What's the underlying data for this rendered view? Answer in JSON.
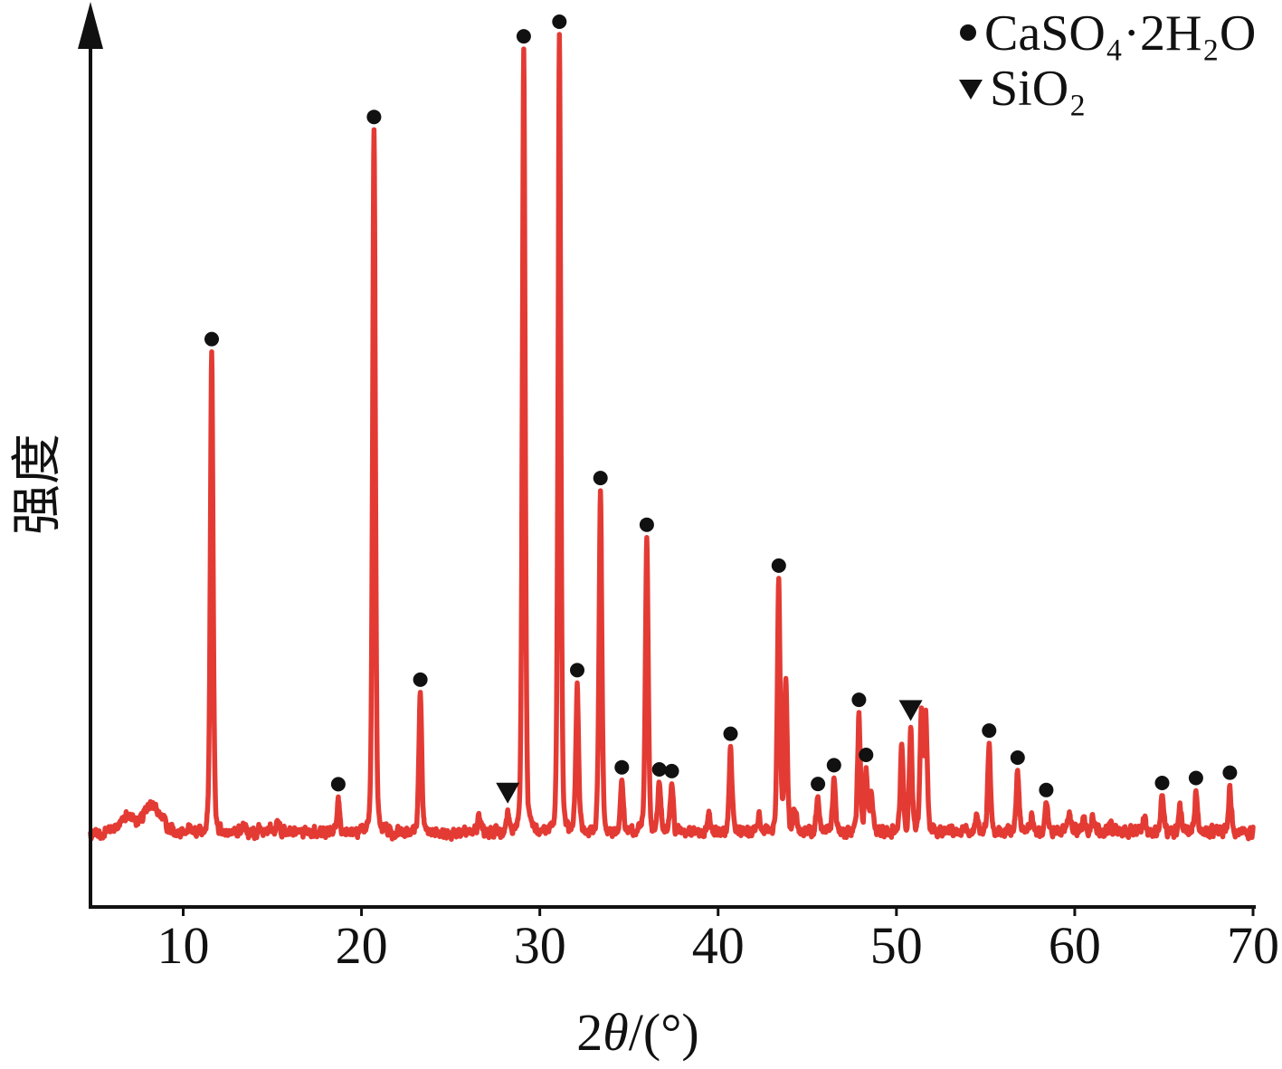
{
  "chart_data": {
    "type": "line",
    "xlabel": "2θ/(°)",
    "ylabel": "强度",
    "xlim": [
      4.8,
      70
    ],
    "ylim": [
      -8.8,
      104.6
    ],
    "xticks": [
      10,
      20,
      30,
      40,
      50,
      60,
      70
    ],
    "yticks": [],
    "grid": false,
    "legend_position": "top-right",
    "series": [
      {
        "color": "#e33b34",
        "peaks": [
          [
            10.3,
            1.0
          ],
          [
            11.6,
            61.0
          ],
          [
            13.4,
            0.8
          ],
          [
            15.3,
            1.2
          ],
          [
            18.7,
            4.0
          ],
          [
            20.7,
            89.4
          ],
          [
            23.3,
            17.7
          ],
          [
            26.6,
            2.4
          ],
          [
            28.2,
            2.3
          ],
          [
            29.1,
            98.6
          ],
          [
            31.1,
            100.0
          ],
          [
            32.1,
            18.6
          ],
          [
            33.4,
            43.3
          ],
          [
            34.6,
            6.9
          ],
          [
            36.0,
            37.5
          ],
          [
            36.7,
            6.6
          ],
          [
            37.4,
            6.5
          ],
          [
            39.5,
            2.3
          ],
          [
            40.7,
            11.5
          ],
          [
            42.3,
            1.6
          ],
          [
            43.4,
            32.0
          ],
          [
            43.8,
            19.0
          ],
          [
            44.3,
            2.9
          ],
          [
            45.6,
            4.5
          ],
          [
            46.5,
            7.2
          ],
          [
            47.9,
            14.7
          ],
          [
            48.3,
            7.7
          ],
          [
            48.6,
            5.0
          ],
          [
            50.3,
            11.5
          ],
          [
            50.8,
            13.0
          ],
          [
            51.4,
            15.2
          ],
          [
            51.65,
            14.5
          ],
          [
            54.5,
            2.3
          ],
          [
            55.2,
            11.1
          ],
          [
            56.8,
            8.0
          ],
          [
            57.6,
            1.7
          ],
          [
            58.4,
            4.0
          ],
          [
            59.7,
            2.2
          ],
          [
            60.5,
            1.9
          ],
          [
            61.0,
            1.6
          ],
          [
            62.0,
            1.3
          ],
          [
            63.9,
            1.9
          ],
          [
            64.9,
            5.1
          ],
          [
            65.9,
            3.2
          ],
          [
            66.8,
            5.4
          ],
          [
            68.7,
            5.4
          ]
        ],
        "background": [
          [
            4.8,
            0.3
          ],
          [
            5.4,
            0.5
          ],
          [
            6.0,
            1.0
          ],
          [
            6.4,
            1.8
          ],
          [
            6.8,
            2.9
          ],
          [
            7.1,
            2.6
          ],
          [
            7.4,
            2.2
          ],
          [
            7.8,
            2.8
          ],
          [
            8.2,
            4.0
          ],
          [
            8.5,
            3.6
          ],
          [
            8.8,
            2.6
          ],
          [
            9.1,
            1.3
          ],
          [
            9.5,
            0.5
          ],
          [
            10.5,
            0.6
          ],
          [
            12,
            0.5
          ],
          [
            15,
            0.8
          ],
          [
            20,
            0.6
          ],
          [
            25,
            0.6
          ],
          [
            30,
            0.6
          ],
          [
            35,
            0.6
          ],
          [
            40,
            0.6
          ],
          [
            45,
            0.7
          ],
          [
            50,
            0.7
          ],
          [
            55,
            0.7
          ],
          [
            60,
            0.8
          ],
          [
            65,
            0.7
          ],
          [
            70,
            0.6
          ]
        ]
      }
    ],
    "phase_markers": [
      {
        "label": "CaSO₄·2H₂O",
        "symbol": "circle",
        "color": "#111111",
        "two_theta": [
          11.6,
          18.7,
          20.7,
          23.3,
          29.1,
          31.1,
          32.1,
          33.4,
          34.6,
          36.0,
          36.7,
          37.4,
          40.7,
          43.4,
          45.6,
          46.5,
          47.9,
          48.3,
          55.2,
          56.8,
          58.4,
          64.9,
          66.8,
          68.7
        ]
      },
      {
        "label": "SiO₂",
        "symbol": "triangle-down",
        "color": "#111111",
        "two_theta": [
          28.2,
          50.8
        ]
      }
    ]
  }
}
